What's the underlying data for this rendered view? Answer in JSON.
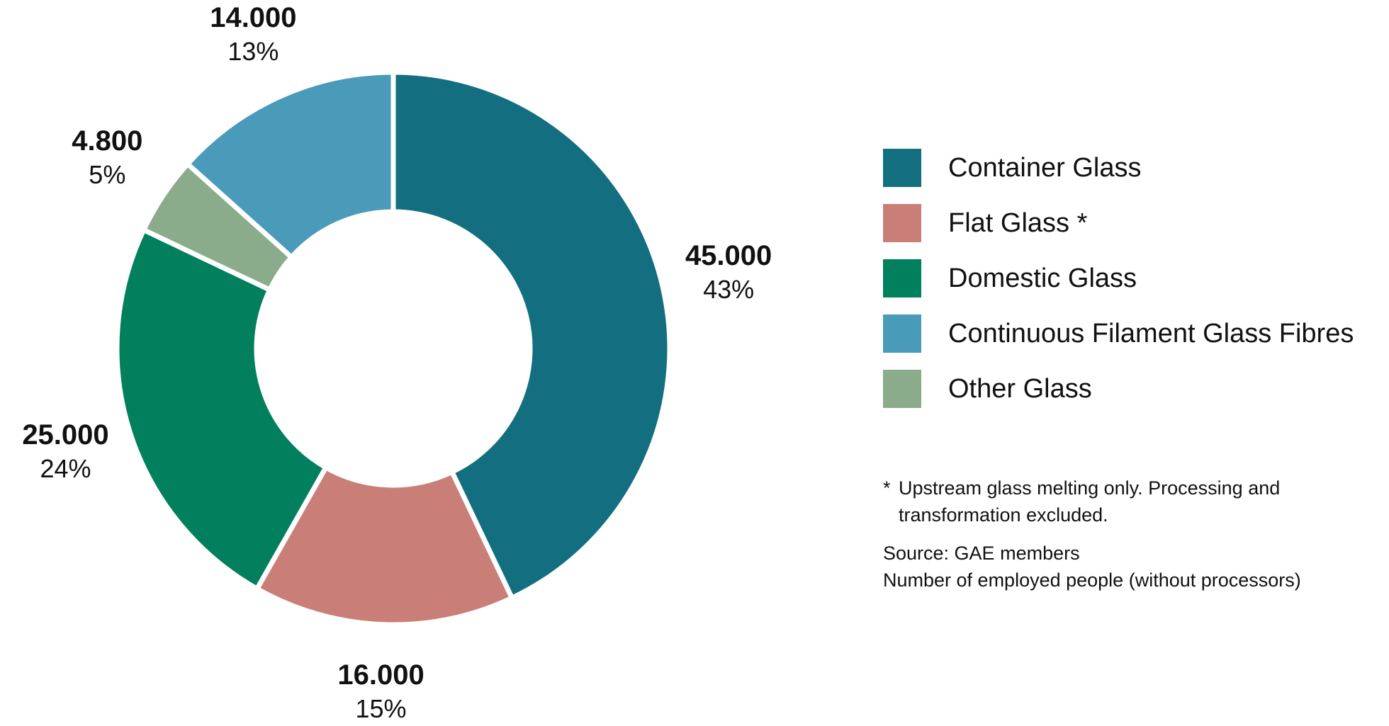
{
  "chart_data": {
    "type": "pie",
    "donut": true,
    "categories": [
      "Container Glass",
      "Flat Glass *",
      "Domestic Glass",
      "Continuous Filament Glass Fibres",
      "Other Glass"
    ],
    "values": [
      45000,
      16000,
      25000,
      14000,
      4800
    ],
    "value_labels": [
      "45.000",
      "16.000",
      "25.000",
      "14.000",
      "4.800"
    ],
    "percent_labels": [
      "43%",
      "15%",
      "24%",
      "13%",
      "5%"
    ],
    "slice_order": [
      "Container Glass",
      "Flat Glass *",
      "Domestic Glass",
      "Other Glass",
      "Continuous Filament Glass Fibres"
    ],
    "colors": {
      "Container Glass": "#136f80",
      "Flat Glass *": "#c97f78",
      "Domestic Glass": "#02805e",
      "Continuous Filament Glass Fibres": "#4a9aba",
      "Other Glass": "#8aac8a"
    },
    "legend_position": "right"
  },
  "notes": {
    "footnote_mark": "*",
    "footnote_line1": "Upstream glass melting only. Processing and",
    "footnote_line2": "transformation excluded.",
    "source": "Source: GAE members",
    "measure": "Number of employed people (without processors)"
  }
}
